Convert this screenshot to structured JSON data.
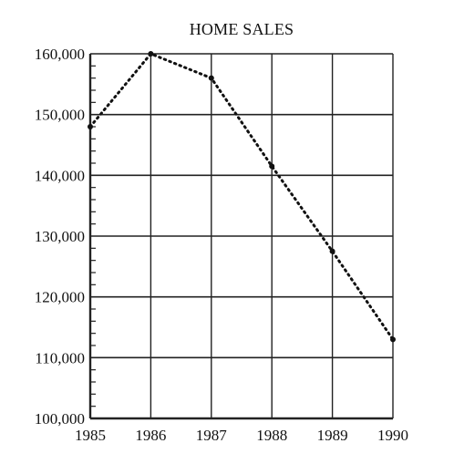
{
  "chart_data": {
    "type": "line",
    "title": "HOME SALES",
    "xlabel": "",
    "ylabel": "",
    "categories": [
      "1985",
      "1986",
      "1987",
      "1988",
      "1989",
      "1990"
    ],
    "series": [
      {
        "name": "",
        "values": [
          148000,
          160000,
          156000,
          141500,
          127500,
          113000
        ]
      }
    ],
    "ylim": [
      100000,
      160000
    ],
    "yticks": [
      "100,000",
      "110,000",
      "120,000",
      "130,000",
      "140,000",
      "150,000",
      "160,000"
    ],
    "grid": true,
    "legend": "none",
    "line_style": "dotted",
    "colors": {
      "line": "#111111",
      "grid": "#222222",
      "text": "#111111",
      "background": "#ffffff"
    }
  }
}
